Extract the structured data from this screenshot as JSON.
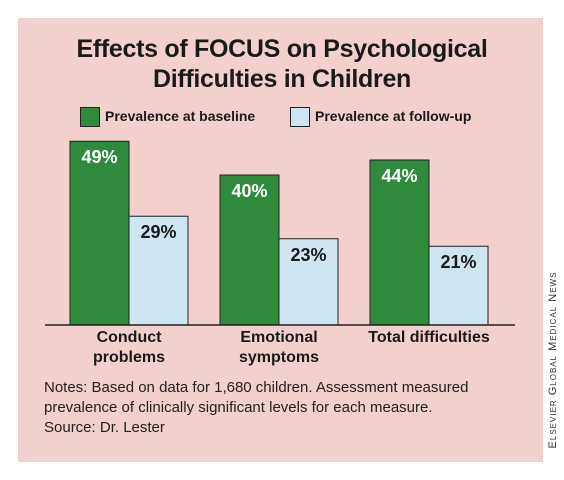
{
  "chart_data": {
    "type": "bar",
    "title": "Effects of FOCUS on Psychological Difficulties in Children",
    "categories": [
      "Conduct problems",
      "Emotional symptoms",
      "Total difficulties"
    ],
    "series": [
      {
        "name": "Prevalence at baseline",
        "color": "#2f8a3c",
        "label_color": "#ffffff",
        "values": [
          49,
          40,
          44
        ],
        "value_labels": [
          "49%",
          "40%",
          "44%"
        ]
      },
      {
        "name": "Prevalence at follow-up",
        "color": "#cfe5f1",
        "label_color": "#1a1a1a",
        "values": [
          29,
          23,
          21
        ],
        "value_labels": [
          "29%",
          "23%",
          "21%"
        ]
      }
    ],
    "notes": "Notes: Based on data for 1,680 children. Assessment measured prevalence of clinically significant levels for each measure.",
    "source": "Source: Dr. Lester"
  },
  "credit": "Elsevier Global Medical News"
}
